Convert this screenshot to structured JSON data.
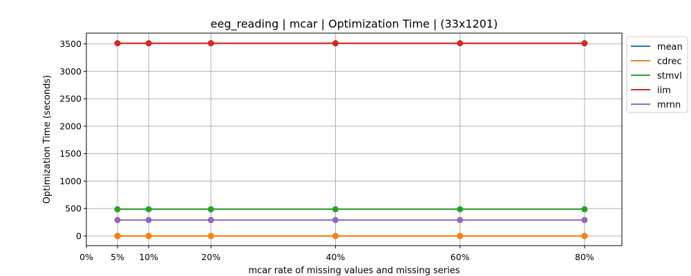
{
  "chart_data": {
    "type": "line",
    "title": "eeg_reading | mcar | Optimization Time | (33x1201)",
    "xlabel": "mcar rate of missing values and missing series",
    "ylabel": "Optimization Time (seconds)",
    "x": [
      0.05,
      0.1,
      0.2,
      0.4,
      0.6,
      0.8
    ],
    "xticks": [
      0,
      0.05,
      0.1,
      0.2,
      0.4,
      0.6,
      0.8
    ],
    "xtick_labels": [
      "0%",
      "5%",
      "10%",
      "20%",
      "40%",
      "60%",
      "80%"
    ],
    "xlim": [
      0,
      0.86
    ],
    "yticks": [
      0,
      500,
      1000,
      1500,
      2000,
      2500,
      3000,
      3500
    ],
    "yticks_labels": [
      "0",
      "500",
      "1000",
      "1500",
      "2000",
      "2500",
      "3000",
      "3500"
    ],
    "ylim": [
      -176,
      3696
    ],
    "grid": true,
    "legend_position": "outside-top-right",
    "series": [
      {
        "name": "mean",
        "color": "#1f77b4",
        "values": [
          0,
          0,
          0,
          0,
          0,
          0
        ]
      },
      {
        "name": "cdrec",
        "color": "#ff7f0e",
        "values": [
          2,
          2,
          2,
          2,
          2,
          2
        ]
      },
      {
        "name": "stmvl",
        "color": "#2ca02c",
        "values": [
          487,
          487,
          487,
          487,
          487,
          487
        ]
      },
      {
        "name": "iim",
        "color": "#d62728",
        "values": [
          3512,
          3512,
          3512,
          3512,
          3512,
          3512
        ]
      },
      {
        "name": "mrnn",
        "color": "#9467bd",
        "values": [
          290,
          290,
          290,
          290,
          290,
          290
        ]
      }
    ]
  }
}
